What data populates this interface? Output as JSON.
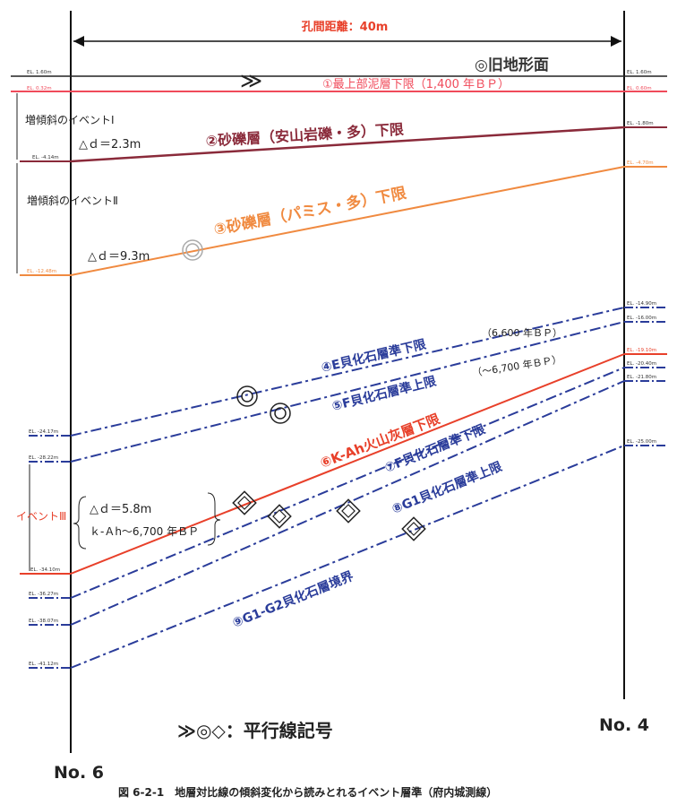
{
  "diagram": {
    "title": "孔間距離：40m",
    "old_surface": "◎旧地形面",
    "borehole_left": "No. 6",
    "borehole_right": "No. 4",
    "legend": "≫◎◇：平行線記号",
    "caption": "図 6-2-1　地層対比線の傾斜変化から読みとれるイベント層準（府内城測線）",
    "events": {
      "event1": "増傾斜のイベントⅠ",
      "event1_dd": "△ｄ＝2.3m",
      "event2": "増傾斜のイベントⅡ",
      "event2_dd": "△ｄ＝9.3m",
      "event3": "イベントⅢ",
      "event3_dd": "△ｄ＝5.8m",
      "event3_age": "ｋ-Ａh～6,700 年ＢＰ"
    },
    "layers": {
      "l1": "①最上部泥層下限（1,400 年ＢＰ）",
      "l2": "②砂礫層（安山岩礫・多）下限",
      "l3": "③砂礫層（パミス・多）下限",
      "l4": "④E貝化石層準下限",
      "l4_age": "（6,600 年ＢＰ）",
      "l5": "⑤F貝化石層準上限",
      "l5_age": "（～6,700 年ＢＰ）",
      "l6": "⑥K-Ah火山灰層下限",
      "l7": "⑦F貝化石層準下限",
      "l8": "⑧G1貝化石層準上限",
      "l9": "⑨G1-G2貝化石層境界"
    },
    "elevations_left": [
      "EL. 1.60m",
      "EL. 0.32m",
      "EL. -4.14m",
      "EL. -12.48m",
      "EL. -24.17m",
      "EL. -28.22m",
      "EL. -34.10m",
      "EL. -36.27m",
      "EL. -38.07m",
      "EL. -41.12m"
    ],
    "elevations_right": [
      "EL. 1.60m",
      "EL. 0.60m",
      "EL. -1.80m",
      "EL. -4.70m",
      "EL. -14.90m",
      "EL. -16.00m",
      "EL. -19.10m",
      "EL. -20.40m",
      "EL. -21.80m",
      "EL. -25.00m"
    ],
    "colors": {
      "black": "#222222",
      "pink": "#f04a5a",
      "maroon": "#8a2a3a",
      "orange": "#f08a40",
      "blue": "#2a3c9a",
      "red": "#e8402a"
    }
  }
}
